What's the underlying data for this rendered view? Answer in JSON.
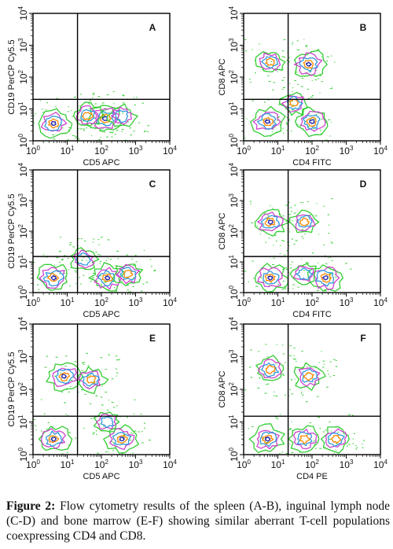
{
  "caption": {
    "label": "Figure 2:",
    "text": "Flow cytometry results of the spleen (A-B), inguinal lymph node (C-D) and bone marrow (E-F) showing similar aberrant T-cell populations coexpressing CD4 and CD8."
  },
  "colors": {
    "outer": "#33cc33",
    "mid": "#cc44cc",
    "inner": "#3399dd",
    "core": "#ff8800",
    "peak": "#2222aa",
    "frame": "#000000"
  },
  "chart_data": [
    {
      "type": "scatter",
      "subtype": "flow-cytometry-contour",
      "panel": "A",
      "xlabel": "CD5 APC",
      "ylabel": "CD19 PerCP Cy5.5",
      "x_scale": "log",
      "y_scale": "log",
      "xlim": [
        1,
        10000
      ],
      "ylim": [
        1,
        10000
      ],
      "x_ticks": [
        "10",
        "10",
        "10",
        "10",
        "10"
      ],
      "x_tick_exponents": [
        "0",
        "1",
        "2",
        "3",
        "4"
      ],
      "y_ticks": [
        "10",
        "10",
        "10",
        "10",
        "10"
      ],
      "y_tick_exponents": [
        "0",
        "1",
        "2",
        "3",
        "4"
      ],
      "quadrant_gate": {
        "x": 20,
        "y": 20
      },
      "populations": [
        {
          "x": 4,
          "y": 3.5,
          "intensity": 0.85
        },
        {
          "x": 130,
          "y": 5,
          "intensity": 1.0
        },
        {
          "x": 40,
          "y": 6,
          "intensity": 0.7
        },
        {
          "x": 400,
          "y": 6,
          "intensity": 0.5
        }
      ]
    },
    {
      "type": "scatter",
      "subtype": "flow-cytometry-contour",
      "panel": "B",
      "xlabel": "CD4 FITC",
      "ylabel": "CD8 APC",
      "x_scale": "log",
      "y_scale": "log",
      "xlim": [
        1,
        10000
      ],
      "ylim": [
        1,
        10000
      ],
      "x_ticks": [
        "10",
        "10",
        "10",
        "10",
        "10"
      ],
      "x_tick_exponents": [
        "0",
        "1",
        "2",
        "3",
        "4"
      ],
      "y_ticks": [
        "10",
        "10",
        "10",
        "10",
        "10"
      ],
      "y_tick_exponents": [
        "0",
        "1",
        "2",
        "3",
        "4"
      ],
      "quadrant_gate": {
        "x": 20,
        "y": 20
      },
      "populations": [
        {
          "x": 6,
          "y": 300,
          "intensity": 0.6
        },
        {
          "x": 80,
          "y": 250,
          "intensity": 0.95
        },
        {
          "x": 5,
          "y": 4,
          "intensity": 0.95
        },
        {
          "x": 100,
          "y": 4,
          "intensity": 0.9
        },
        {
          "x": 30,
          "y": 15,
          "intensity": 0.6
        }
      ]
    },
    {
      "type": "scatter",
      "subtype": "flow-cytometry-contour",
      "panel": "C",
      "xlabel": "CD5 APC",
      "ylabel": "CD19 PerCP Cy5.5",
      "x_scale": "log",
      "y_scale": "log",
      "xlim": [
        1,
        10000
      ],
      "ylim": [
        1,
        10000
      ],
      "x_ticks": [
        "10",
        "10",
        "10",
        "10",
        "10"
      ],
      "x_tick_exponents": [
        "0",
        "1",
        "2",
        "3",
        "4"
      ],
      "y_ticks": [
        "10",
        "10",
        "10",
        "10",
        "10"
      ],
      "y_tick_exponents": [
        "0",
        "1",
        "2",
        "3",
        "4"
      ],
      "quadrant_gate": {
        "x": 20,
        "y": 15
      },
      "populations": [
        {
          "x": 4,
          "y": 3,
          "intensity": 1.0
        },
        {
          "x": 150,
          "y": 3,
          "intensity": 0.9
        },
        {
          "x": 600,
          "y": 4,
          "intensity": 0.6
        },
        {
          "x": 30,
          "y": 12,
          "intensity": 0.5
        }
      ]
    },
    {
      "type": "scatter",
      "subtype": "flow-cytometry-contour",
      "panel": "D",
      "xlabel": "CD4 FITC",
      "ylabel": "CD8 APC",
      "x_scale": "log",
      "y_scale": "log",
      "xlim": [
        1,
        10000
      ],
      "ylim": [
        1,
        10000
      ],
      "x_ticks": [
        "10",
        "10",
        "10",
        "10",
        "10"
      ],
      "x_tick_exponents": [
        "0",
        "1",
        "2",
        "3",
        "4"
      ],
      "y_ticks": [
        "10",
        "10",
        "10",
        "10",
        "10"
      ],
      "y_tick_exponents": [
        "0",
        "1",
        "2",
        "3",
        "4"
      ],
      "quadrant_gate": {
        "x": 20,
        "y": 15
      },
      "populations": [
        {
          "x": 6,
          "y": 200,
          "intensity": 0.95
        },
        {
          "x": 60,
          "y": 200,
          "intensity": 0.6
        },
        {
          "x": 6,
          "y": 3,
          "intensity": 0.9
        },
        {
          "x": 250,
          "y": 3,
          "intensity": 1.0
        },
        {
          "x": 60,
          "y": 4,
          "intensity": 0.5
        }
      ]
    },
    {
      "type": "scatter",
      "subtype": "flow-cytometry-contour",
      "panel": "E",
      "xlabel": "CD5 APC",
      "ylabel": "CD19 PerCP Cy5.5",
      "x_scale": "log",
      "y_scale": "log",
      "xlim": [
        1,
        10000
      ],
      "ylim": [
        1,
        10000
      ],
      "x_ticks": [
        "10",
        "10",
        "10",
        "10",
        "10"
      ],
      "x_tick_exponents": [
        "0",
        "1",
        "2",
        "3",
        "4"
      ],
      "y_ticks": [
        "10",
        "10",
        "10",
        "10",
        "10"
      ],
      "y_tick_exponents": [
        "0",
        "1",
        "2",
        "3",
        "4"
      ],
      "quadrant_gate": {
        "x": 20,
        "y": 15
      },
      "populations": [
        {
          "x": 8,
          "y": 250,
          "intensity": 0.95
        },
        {
          "x": 50,
          "y": 200,
          "intensity": 0.7
        },
        {
          "x": 4,
          "y": 3,
          "intensity": 0.85
        },
        {
          "x": 400,
          "y": 3,
          "intensity": 0.85
        },
        {
          "x": 150,
          "y": 10,
          "intensity": 0.4
        }
      ]
    },
    {
      "type": "scatter",
      "subtype": "flow-cytometry-contour",
      "panel": "F",
      "xlabel": "CD4 PE",
      "ylabel": "CD8 APC",
      "x_scale": "log",
      "y_scale": "log",
      "xlim": [
        1,
        10000
      ],
      "ylim": [
        1,
        10000
      ],
      "x_ticks": [
        "10",
        "10",
        "10",
        "10",
        "10"
      ],
      "x_tick_exponents": [
        "0",
        "1",
        "2",
        "3",
        "4"
      ],
      "y_ticks": [
        "10",
        "10",
        "10",
        "10",
        "10"
      ],
      "y_tick_exponents": [
        "0",
        "1",
        "2",
        "3",
        "4"
      ],
      "quadrant_gate": {
        "x": 20,
        "y": 15
      },
      "populations": [
        {
          "x": 6,
          "y": 400,
          "intensity": 0.75
        },
        {
          "x": 80,
          "y": 250,
          "intensity": 0.7
        },
        {
          "x": 5,
          "y": 3,
          "intensity": 0.9
        },
        {
          "x": 60,
          "y": 3,
          "intensity": 0.75
        },
        {
          "x": 500,
          "y": 3,
          "intensity": 0.7
        }
      ]
    }
  ]
}
